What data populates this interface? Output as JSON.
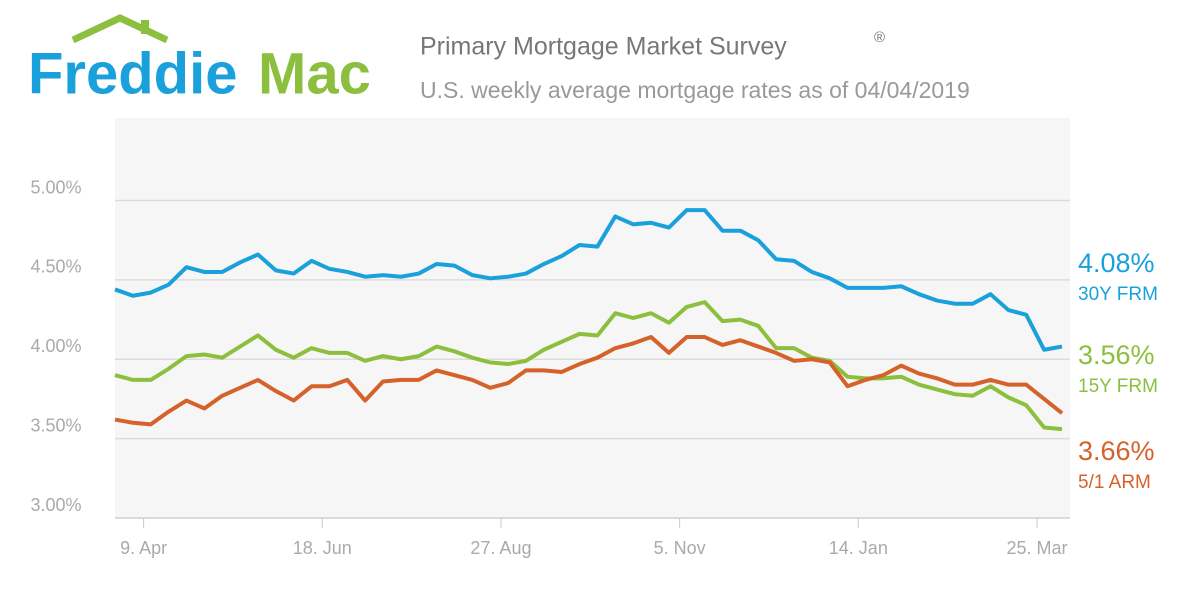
{
  "header": {
    "logo_left": "Freddie",
    "logo_right": "Mac"
  },
  "chart_data": {
    "type": "line",
    "title": "Primary Mortgage Market Survey",
    "title_mark": "®",
    "subtitle": "U.S. weekly average mortgage rates as of 04/04/2019",
    "categories": [
      null,
      null,
      "9. Apr",
      null,
      null,
      null,
      null,
      null,
      null,
      null,
      null,
      null,
      "18. Jun",
      null,
      null,
      null,
      null,
      null,
      null,
      null,
      null,
      null,
      "27. Aug",
      null,
      null,
      null,
      null,
      null,
      null,
      null,
      null,
      null,
      "5. Nov",
      null,
      null,
      null,
      null,
      null,
      null,
      null,
      null,
      null,
      "14. Jan",
      null,
      null,
      null,
      null,
      null,
      null,
      null,
      null,
      null,
      "25. Mar",
      null
    ],
    "ylim": [
      3.0,
      5.52
    ],
    "yticks": [
      {
        "value": 3.0,
        "label": "3.00%"
      },
      {
        "value": 3.5,
        "label": "3.50%"
      },
      {
        "value": 4.0,
        "label": "4.00%"
      },
      {
        "value": 4.5,
        "label": "4.50%"
      },
      {
        "value": 5.0,
        "label": "5.00%"
      }
    ],
    "grid": true,
    "series": [
      {
        "name": "30Y FRM",
        "color": "#1aa0db",
        "values": [
          4.44,
          4.4,
          4.42,
          4.47,
          4.58,
          4.55,
          4.55,
          4.61,
          4.66,
          4.56,
          4.54,
          4.62,
          4.57,
          4.55,
          4.52,
          4.53,
          4.52,
          4.54,
          4.6,
          4.59,
          4.53,
          4.51,
          4.52,
          4.54,
          4.6,
          4.65,
          4.72,
          4.71,
          4.9,
          4.85,
          4.86,
          4.83,
          4.94,
          4.94,
          4.81,
          4.81,
          4.75,
          4.63,
          4.62,
          4.55,
          4.51,
          4.45,
          4.45,
          4.45,
          4.46,
          4.41,
          4.37,
          4.35,
          4.35,
          4.41,
          4.31,
          4.28,
          4.06,
          4.08
        ],
        "value_labels": [
          null,
          null,
          null,
          null,
          null,
          null,
          null,
          null,
          null,
          null,
          null,
          null,
          null,
          null,
          null,
          null,
          null,
          null,
          null,
          null,
          null,
          null,
          null,
          null,
          null,
          null,
          null,
          null,
          null,
          null,
          null,
          null,
          null,
          null,
          null,
          null,
          null,
          null,
          null,
          null,
          null,
          null,
          null,
          null,
          null,
          null,
          null,
          null,
          null,
          null,
          null,
          null,
          null,
          "4.08%"
        ]
      },
      {
        "name": "15Y FRM",
        "color": "#8dbf3f",
        "values": [
          3.9,
          3.87,
          3.87,
          3.94,
          4.02,
          4.03,
          4.01,
          4.08,
          4.15,
          4.06,
          4.01,
          4.07,
          4.04,
          4.04,
          3.99,
          4.02,
          4.0,
          4.02,
          4.08,
          4.05,
          4.01,
          3.98,
          3.97,
          3.99,
          4.06,
          4.11,
          4.16,
          4.15,
          4.29,
          4.26,
          4.29,
          4.23,
          4.33,
          4.36,
          4.24,
          4.25,
          4.21,
          4.07,
          4.07,
          4.01,
          3.99,
          3.89,
          3.88,
          3.88,
          3.89,
          3.84,
          3.81,
          3.78,
          3.77,
          3.83,
          3.76,
          3.71,
          3.57,
          3.56
        ],
        "value_labels": [
          null,
          null,
          null,
          null,
          null,
          null,
          null,
          null,
          null,
          null,
          null,
          null,
          null,
          null,
          null,
          null,
          null,
          null,
          null,
          null,
          null,
          null,
          null,
          null,
          null,
          null,
          null,
          null,
          null,
          null,
          null,
          null,
          null,
          null,
          null,
          null,
          null,
          null,
          null,
          null,
          null,
          null,
          null,
          null,
          null,
          null,
          null,
          null,
          null,
          null,
          null,
          null,
          null,
          "3.56%"
        ]
      },
      {
        "name": "5/1 ARM",
        "color": "#d4622a",
        "values": [
          3.62,
          3.6,
          3.59,
          3.67,
          3.74,
          3.69,
          3.77,
          3.82,
          3.87,
          3.8,
          3.74,
          3.83,
          3.83,
          3.87,
          3.74,
          3.86,
          3.87,
          3.87,
          3.93,
          3.9,
          3.87,
          3.82,
          3.85,
          3.93,
          3.93,
          3.92,
          3.97,
          4.01,
          4.07,
          4.1,
          4.14,
          4.04,
          4.14,
          4.14,
          4.09,
          4.12,
          4.08,
          4.04,
          3.99,
          4.0,
          3.98,
          3.83,
          3.87,
          3.9,
          3.96,
          3.91,
          3.88,
          3.84,
          3.84,
          3.87,
          3.84,
          3.84,
          3.75,
          3.66
        ],
        "value_labels": [
          null,
          null,
          null,
          null,
          null,
          null,
          null,
          null,
          null,
          null,
          null,
          null,
          null,
          null,
          null,
          null,
          null,
          null,
          null,
          null,
          null,
          null,
          null,
          null,
          null,
          null,
          null,
          null,
          null,
          null,
          null,
          null,
          null,
          null,
          null,
          null,
          null,
          null,
          null,
          null,
          null,
          null,
          null,
          null,
          null,
          null,
          null,
          null,
          null,
          null,
          null,
          null,
          null,
          "3.66%"
        ]
      }
    ]
  }
}
